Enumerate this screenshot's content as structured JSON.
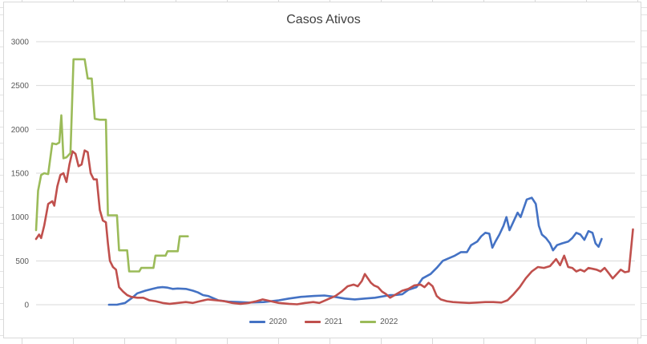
{
  "chart_data": {
    "type": "line",
    "title": "Casos Ativos",
    "xlabel": "",
    "ylabel": "",
    "ylim": [
      0,
      3000
    ],
    "yticks": [
      0,
      500,
      1000,
      1500,
      2000,
      2500,
      3000
    ],
    "grid": true,
    "legend_position": "bottom",
    "x_count": 365,
    "series": [
      {
        "name": "2020",
        "color": "#4472C4",
        "points": [
          [
            72,
            0
          ],
          [
            80,
            0
          ],
          [
            88,
            20
          ],
          [
            95,
            80
          ],
          [
            100,
            130
          ],
          [
            108,
            160
          ],
          [
            115,
            180
          ],
          [
            120,
            195
          ],
          [
            125,
            200
          ],
          [
            130,
            195
          ],
          [
            135,
            180
          ],
          [
            140,
            185
          ],
          [
            148,
            180
          ],
          [
            155,
            160
          ],
          [
            160,
            140
          ],
          [
            165,
            110
          ],
          [
            170,
            100
          ],
          [
            176,
            70
          ],
          [
            180,
            50
          ],
          [
            190,
            35
          ],
          [
            200,
            30
          ],
          [
            210,
            25
          ],
          [
            225,
            30
          ],
          [
            240,
            50
          ],
          [
            250,
            70
          ],
          [
            262,
            90
          ],
          [
            275,
            100
          ],
          [
            285,
            105
          ],
          [
            295,
            90
          ],
          [
            305,
            70
          ],
          [
            315,
            60
          ],
          [
            325,
            70
          ],
          [
            335,
            80
          ],
          [
            345,
            100
          ],
          [
            350,
            110
          ],
          [
            355,
            110
          ],
          [
            362,
            120
          ],
          [
            368,
            170
          ],
          [
            376,
            200
          ],
          [
            382,
            300
          ],
          [
            390,
            350
          ],
          [
            396,
            420
          ],
          [
            402,
            500
          ],
          [
            408,
            530
          ],
          [
            414,
            560
          ],
          [
            420,
            600
          ],
          [
            426,
            600
          ],
          [
            430,
            680
          ],
          [
            436,
            720
          ],
          [
            440,
            780
          ],
          [
            444,
            820
          ],
          [
            448,
            810
          ],
          [
            451,
            650
          ],
          [
            454,
            720
          ],
          [
            458,
            800
          ],
          [
            462,
            900
          ],
          [
            465,
            1000
          ],
          [
            468,
            850
          ],
          [
            472,
            950
          ],
          [
            476,
            1050
          ],
          [
            479,
            1000
          ],
          [
            482,
            1100
          ],
          [
            485,
            1200
          ],
          [
            490,
            1220
          ],
          [
            494,
            1150
          ],
          [
            497,
            900
          ],
          [
            500,
            800
          ],
          [
            504,
            760
          ],
          [
            508,
            700
          ],
          [
            511,
            620
          ],
          [
            515,
            680
          ],
          [
            520,
            700
          ],
          [
            526,
            720
          ],
          [
            530,
            760
          ],
          [
            534,
            820
          ],
          [
            538,
            800
          ],
          [
            542,
            740
          ],
          [
            546,
            840
          ],
          [
            550,
            820
          ],
          [
            553,
            700
          ],
          [
            556,
            660
          ],
          [
            559,
            750
          ]
        ]
      },
      {
        "name": "2021",
        "color": "#C0504D",
        "points": [
          [
            0,
            750
          ],
          [
            3,
            800
          ],
          [
            5,
            760
          ],
          [
            8,
            900
          ],
          [
            12,
            1150
          ],
          [
            16,
            1180
          ],
          [
            18,
            1130
          ],
          [
            21,
            1350
          ],
          [
            24,
            1480
          ],
          [
            27,
            1500
          ],
          [
            30,
            1400
          ],
          [
            33,
            1600
          ],
          [
            36,
            1750
          ],
          [
            39,
            1720
          ],
          [
            42,
            1580
          ],
          [
            45,
            1600
          ],
          [
            48,
            1760
          ],
          [
            51,
            1740
          ],
          [
            54,
            1500
          ],
          [
            57,
            1430
          ],
          [
            60,
            1430
          ],
          [
            63,
            1080
          ],
          [
            66,
            960
          ],
          [
            69,
            940
          ],
          [
            71,
            700
          ],
          [
            73,
            500
          ],
          [
            76,
            430
          ],
          [
            79,
            400
          ],
          [
            82,
            200
          ],
          [
            86,
            150
          ],
          [
            90,
            110
          ],
          [
            94,
            90
          ],
          [
            100,
            80
          ],
          [
            106,
            80
          ],
          [
            112,
            50
          ],
          [
            118,
            40
          ],
          [
            125,
            20
          ],
          [
            132,
            10
          ],
          [
            140,
            20
          ],
          [
            148,
            30
          ],
          [
            155,
            20
          ],
          [
            162,
            40
          ],
          [
            170,
            60
          ],
          [
            178,
            50
          ],
          [
            186,
            40
          ],
          [
            194,
            20
          ],
          [
            202,
            10
          ],
          [
            210,
            20
          ],
          [
            218,
            40
          ],
          [
            224,
            60
          ],
          [
            232,
            40
          ],
          [
            240,
            20
          ],
          [
            250,
            10
          ],
          [
            258,
            5
          ],
          [
            266,
            20
          ],
          [
            274,
            30
          ],
          [
            280,
            20
          ],
          [
            288,
            60
          ],
          [
            296,
            100
          ],
          [
            302,
            150
          ],
          [
            308,
            210
          ],
          [
            314,
            230
          ],
          [
            318,
            210
          ],
          [
            322,
            270
          ],
          [
            325,
            350
          ],
          [
            328,
            300
          ],
          [
            331,
            250
          ],
          [
            334,
            220
          ],
          [
            338,
            200
          ],
          [
            342,
            150
          ],
          [
            346,
            120
          ],
          [
            350,
            80
          ],
          [
            356,
            120
          ],
          [
            362,
            160
          ],
          [
            368,
            180
          ],
          [
            374,
            220
          ],
          [
            380,
            230
          ],
          [
            384,
            200
          ],
          [
            388,
            250
          ],
          [
            392,
            210
          ],
          [
            396,
            100
          ],
          [
            400,
            60
          ],
          [
            406,
            40
          ],
          [
            412,
            30
          ],
          [
            420,
            25
          ],
          [
            428,
            20
          ],
          [
            436,
            25
          ],
          [
            444,
            30
          ],
          [
            452,
            30
          ],
          [
            460,
            25
          ],
          [
            466,
            50
          ],
          [
            472,
            120
          ],
          [
            478,
            200
          ],
          [
            484,
            300
          ],
          [
            490,
            380
          ],
          [
            496,
            430
          ],
          [
            502,
            420
          ],
          [
            508,
            440
          ],
          [
            514,
            520
          ],
          [
            518,
            450
          ],
          [
            522,
            560
          ],
          [
            526,
            430
          ],
          [
            530,
            420
          ],
          [
            534,
            380
          ],
          [
            538,
            400
          ],
          [
            542,
            380
          ],
          [
            546,
            420
          ],
          [
            550,
            410
          ],
          [
            554,
            400
          ],
          [
            558,
            380
          ],
          [
            562,
            420
          ],
          [
            566,
            360
          ],
          [
            570,
            300
          ],
          [
            574,
            350
          ],
          [
            578,
            400
          ],
          [
            582,
            370
          ],
          [
            586,
            380
          ],
          [
            590,
            860
          ]
        ]
      },
      {
        "name": "2022",
        "color": "#9BBB59",
        "points": [
          [
            0,
            850
          ],
          [
            2,
            1300
          ],
          [
            5,
            1480
          ],
          [
            8,
            1500
          ],
          [
            12,
            1490
          ],
          [
            16,
            1840
          ],
          [
            20,
            1830
          ],
          [
            23,
            1850
          ],
          [
            25,
            2160
          ],
          [
            27,
            1670
          ],
          [
            30,
            1680
          ],
          [
            34,
            1730
          ],
          [
            37,
            2800
          ],
          [
            42,
            2800
          ],
          [
            48,
            2800
          ],
          [
            51,
            2580
          ],
          [
            55,
            2580
          ],
          [
            58,
            2120
          ],
          [
            63,
            2110
          ],
          [
            69,
            2110
          ],
          [
            71,
            1020
          ],
          [
            76,
            1020
          ],
          [
            80,
            1020
          ],
          [
            82,
            620
          ],
          [
            86,
            620
          ],
          [
            90,
            620
          ],
          [
            92,
            380
          ],
          [
            96,
            380
          ],
          [
            102,
            380
          ],
          [
            104,
            420
          ],
          [
            110,
            420
          ],
          [
            116,
            420
          ],
          [
            118,
            560
          ],
          [
            122,
            560
          ],
          [
            128,
            560
          ],
          [
            130,
            610
          ],
          [
            136,
            610
          ],
          [
            140,
            610
          ],
          [
            142,
            780
          ],
          [
            146,
            780
          ],
          [
            150,
            780
          ]
        ]
      }
    ]
  }
}
